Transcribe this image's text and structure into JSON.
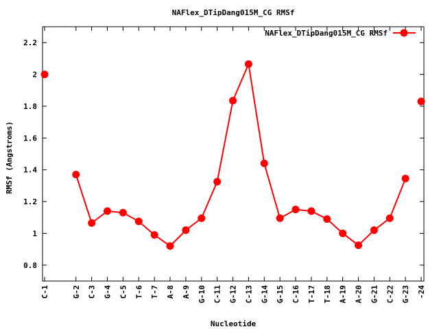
{
  "chart_data": {
    "type": "line",
    "title": "NAFlex_DTipDang015M_CG RMSf",
    "xlabel": "Nucleotide",
    "ylabel": "RMSf (Angstroms)",
    "ylim": [
      0.7,
      2.3
    ],
    "yticks": [
      0.8,
      1,
      1.2,
      1.4,
      1.6,
      1.8,
      2,
      2.2
    ],
    "ytick_labels": [
      "0.8",
      "1",
      "1.2",
      "1.4",
      "1.6",
      "1.8",
      "2",
      "2.2"
    ],
    "xlim": [
      1,
      24
    ],
    "categories": [
      "C-1",
      "G-2",
      "C-3",
      "G-4",
      "C-5",
      "T-6",
      "T-7",
      "A-8",
      "A-9",
      "G-10",
      "C-11",
      "G-12",
      "C-13",
      "G-14",
      "G-15",
      "C-16",
      "T-17",
      "T-18",
      "A-19",
      "A-20",
      "G-21",
      "C-22",
      "G-23",
      "-24"
    ],
    "x_positions": [
      1,
      3,
      4,
      5,
      6,
      7,
      8,
      9,
      10,
      11,
      12,
      13,
      14,
      15,
      16,
      17,
      18,
      19,
      20,
      21,
      22,
      23,
      24,
      25
    ],
    "grid": false,
    "legend_position": "top-right",
    "series": [
      {
        "name": "NAFlex_DTipDang015M_CG RMSf",
        "color": "#ff0000",
        "segments": [
          {
            "x": [
              1
            ],
            "y": [
              2.0
            ]
          },
          {
            "x": [
              3,
              4,
              5,
              6,
              7,
              8,
              9,
              10,
              11,
              12,
              13,
              14,
              15,
              16,
              17,
              18,
              19,
              20,
              21,
              22,
              23,
              24
            ],
            "y": [
              1.37,
              1.065,
              1.14,
              1.13,
              1.075,
              0.99,
              0.92,
              1.02,
              1.095,
              1.325,
              1.835,
              2.065,
              1.44,
              1.095,
              1.15,
              1.14,
              1.09,
              1.0,
              0.925,
              1.02,
              1.095,
              1.345
            ]
          }
        ]
      }
    ],
    "last_point": {
      "x": 25,
      "y": 1.83
    }
  }
}
